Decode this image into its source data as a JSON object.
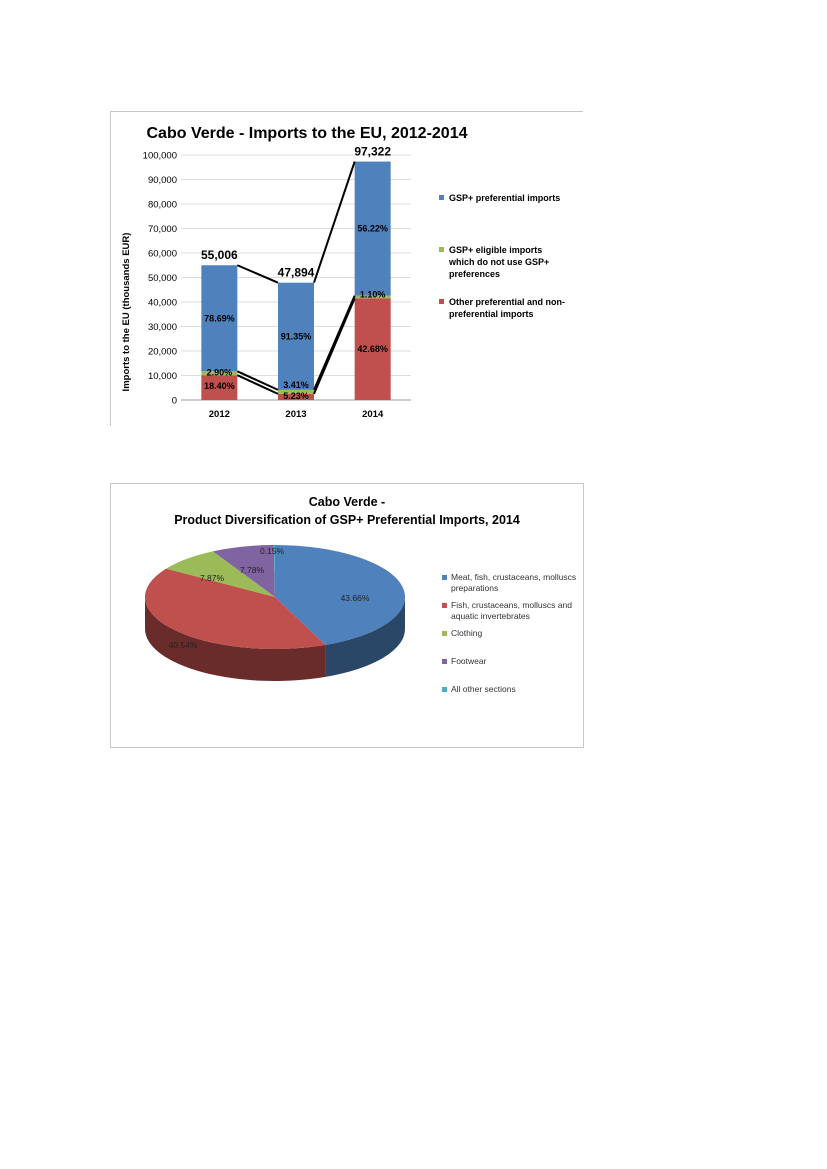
{
  "chart_data": [
    {
      "type": "bar",
      "stacked": true,
      "title": "Cabo Verde - Imports to the EU, 2012-2014",
      "ylabel": "Imports to the EU (thousands EUR)",
      "xlabel": "",
      "ylim": [
        0,
        100000
      ],
      "yticks": [
        "0",
        "10,000",
        "20,000",
        "30,000",
        "40,000",
        "50,000",
        "60,000",
        "70,000",
        "80,000",
        "90,000",
        "100,000"
      ],
      "ytick_values": [
        0,
        10000,
        20000,
        30000,
        40000,
        50000,
        60000,
        70000,
        80000,
        90000,
        100000
      ],
      "grid": true,
      "legend_position": "right",
      "categories": [
        "2012",
        "2013",
        "2014"
      ],
      "totals": [
        55006,
        47894,
        97322
      ],
      "total_labels": [
        "55,006",
        "47,894",
        "97,322"
      ],
      "series": [
        {
          "name": "Other preferential and non-preferential imports",
          "color": "#C0504D",
          "shares": [
            18.4,
            5.23,
            42.68
          ],
          "labels": [
            "18.40%",
            "5.23%",
            "42.68%"
          ]
        },
        {
          "name": "GSP+ eligible imports which do not use GSP+ preferences",
          "color": "#9BBB59",
          "shares": [
            2.9,
            3.41,
            1.1
          ],
          "labels": [
            "2.90%",
            "3.41%",
            "1.10%"
          ]
        },
        {
          "name": "GSP+ preferential imports",
          "color": "#4F81BD",
          "shares": [
            78.69,
            91.35,
            56.22
          ],
          "labels": [
            "78.69%",
            "91.35%",
            "56.22%"
          ]
        }
      ]
    },
    {
      "type": "pie",
      "title_lines": [
        "Cabo Verde -",
        "Product Diversification of GSP+ Preferential Imports, 2014"
      ],
      "legend_position": "right",
      "slices": [
        {
          "name": "Meat, fish, crustaceans, molluscs preparations",
          "value": 43.66,
          "label": "43.66%",
          "color": "#4F81BD"
        },
        {
          "name": "Fish, crustaceans, molluscs and aquatic invertebrates",
          "value": 40.54,
          "label": "40.54%",
          "color": "#C0504D"
        },
        {
          "name": "Clothing",
          "value": 7.87,
          "label": "7.87%",
          "color": "#9BBB59"
        },
        {
          "name": "Footwear",
          "value": 7.78,
          "label": "7.78%",
          "color": "#8064A2"
        },
        {
          "name": "All other sections",
          "value": 0.15,
          "label": "0.15%",
          "color": "#4BACC6"
        }
      ]
    }
  ]
}
